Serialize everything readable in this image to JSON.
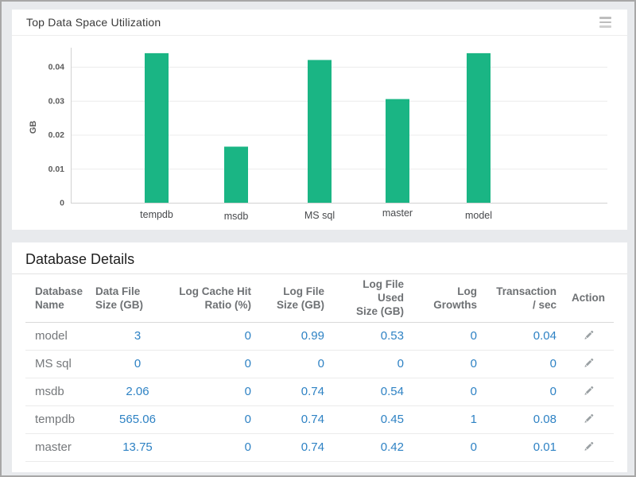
{
  "window": {
    "background": "#e8eaed",
    "frame_border": "#a7a7a7"
  },
  "icons": {
    "chart_menu": "hamburger-menu",
    "row_action": "pencil-edit"
  },
  "chart_panel": {
    "title": "Top Data Space Utilization"
  },
  "chart_data": {
    "type": "bar",
    "title": "Top Data Space Utilization",
    "categories": [
      "tempdb",
      "msdb",
      "MS sql",
      "master",
      "model"
    ],
    "values": [
      0.044,
      0.0165,
      0.042,
      0.0305,
      0.044
    ],
    "xlabel": "",
    "ylabel": "GB",
    "ylim": [
      0,
      0.04
    ],
    "yticks": [
      0,
      0.01,
      0.02,
      0.03,
      0.04
    ],
    "bar_color": "#1ab584",
    "grid": true,
    "legend": "none"
  },
  "table_panel": {
    "title": "Database Details",
    "columns": [
      {
        "label": "Database Name",
        "lines": [
          "Database",
          "Name"
        ],
        "align": "left"
      },
      {
        "label": "Data File Size (GB)",
        "lines": [
          "Data File",
          "Size (GB)"
        ],
        "align": "left"
      },
      {
        "label": "Log Cache Hit Ratio (%)",
        "lines": [
          "Log Cache Hit",
          "Ratio (%)"
        ],
        "align": "right"
      },
      {
        "label": "Log File Size (GB)",
        "lines": [
          "Log File",
          "Size (GB)"
        ],
        "align": "right"
      },
      {
        "label": "Log File Used Size (GB)",
        "lines": [
          "Log File Used",
          "Size (GB)"
        ],
        "align": "right"
      },
      {
        "label": "Log Growths",
        "lines": [
          "Log",
          "Growths"
        ],
        "align": "right"
      },
      {
        "label": "Transaction / sec",
        "lines": [
          "Transaction",
          "/ sec"
        ],
        "align": "right"
      },
      {
        "label": "Action",
        "lines": [
          "Action"
        ],
        "align": "center"
      }
    ],
    "rows": [
      {
        "cells": [
          "model",
          "3",
          "0",
          "0.99",
          "0.53",
          "0",
          "0.04"
        ]
      },
      {
        "cells": [
          "MS sql",
          "0",
          "0",
          "0",
          "0",
          "0",
          "0"
        ]
      },
      {
        "cells": [
          "msdb",
          "2.06",
          "0",
          "0.74",
          "0.54",
          "0",
          "0"
        ]
      },
      {
        "cells": [
          "tempdb",
          "565.06",
          "0",
          "0.74",
          "0.45",
          "1",
          "0.08"
        ]
      },
      {
        "cells": [
          "master",
          "13.75",
          "0",
          "0.74",
          "0.42",
          "0",
          "0.01"
        ]
      }
    ]
  },
  "colors": {
    "bar_green": "#1ab584",
    "value_blue": "#2e82c4",
    "grid_line": "#ececec",
    "axis_line": "#d2d2d2"
  }
}
